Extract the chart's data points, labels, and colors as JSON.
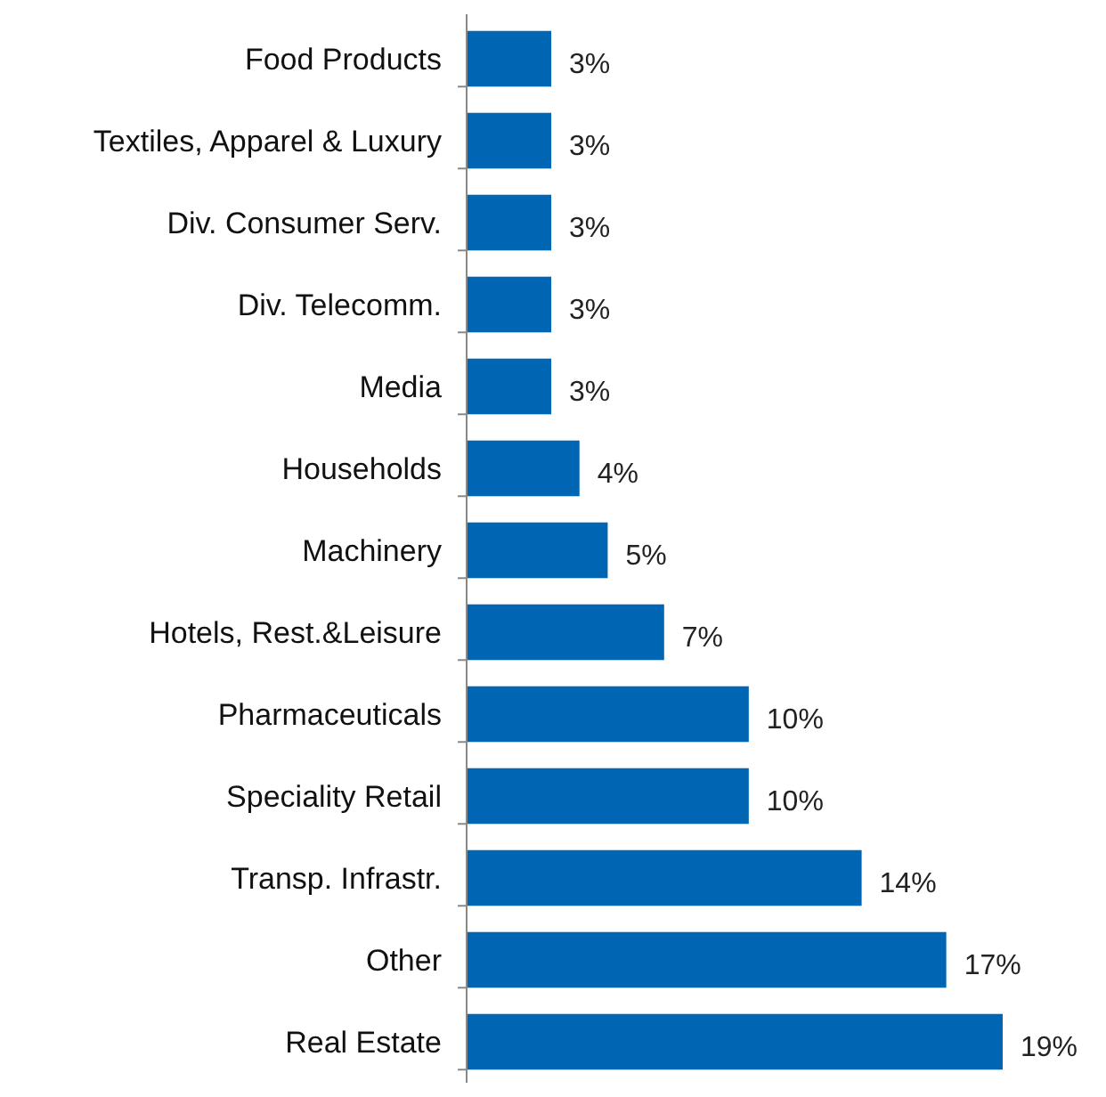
{
  "chart_data": {
    "type": "bar",
    "orientation": "horizontal",
    "categories": [
      "Food Products",
      "Textiles, Apparel & Luxury",
      "Div. Consumer Serv.",
      "Div. Telecomm.",
      "Media",
      "Households",
      "Machinery",
      "Hotels, Rest.&Leisure",
      "Pharmaceuticals",
      "Speciality Retail",
      "Transp. Infrastr.",
      "Other",
      "Real Estate"
    ],
    "values": [
      3,
      3,
      3,
      3,
      3,
      4,
      5,
      7,
      10,
      10,
      14,
      17,
      19
    ],
    "value_labels": [
      "3%",
      "3%",
      "3%",
      "3%",
      "3%",
      "4%",
      "5%",
      "7%",
      "10%",
      "10%",
      "14%",
      "17%",
      "19%"
    ],
    "color": "#0066b3"
  }
}
